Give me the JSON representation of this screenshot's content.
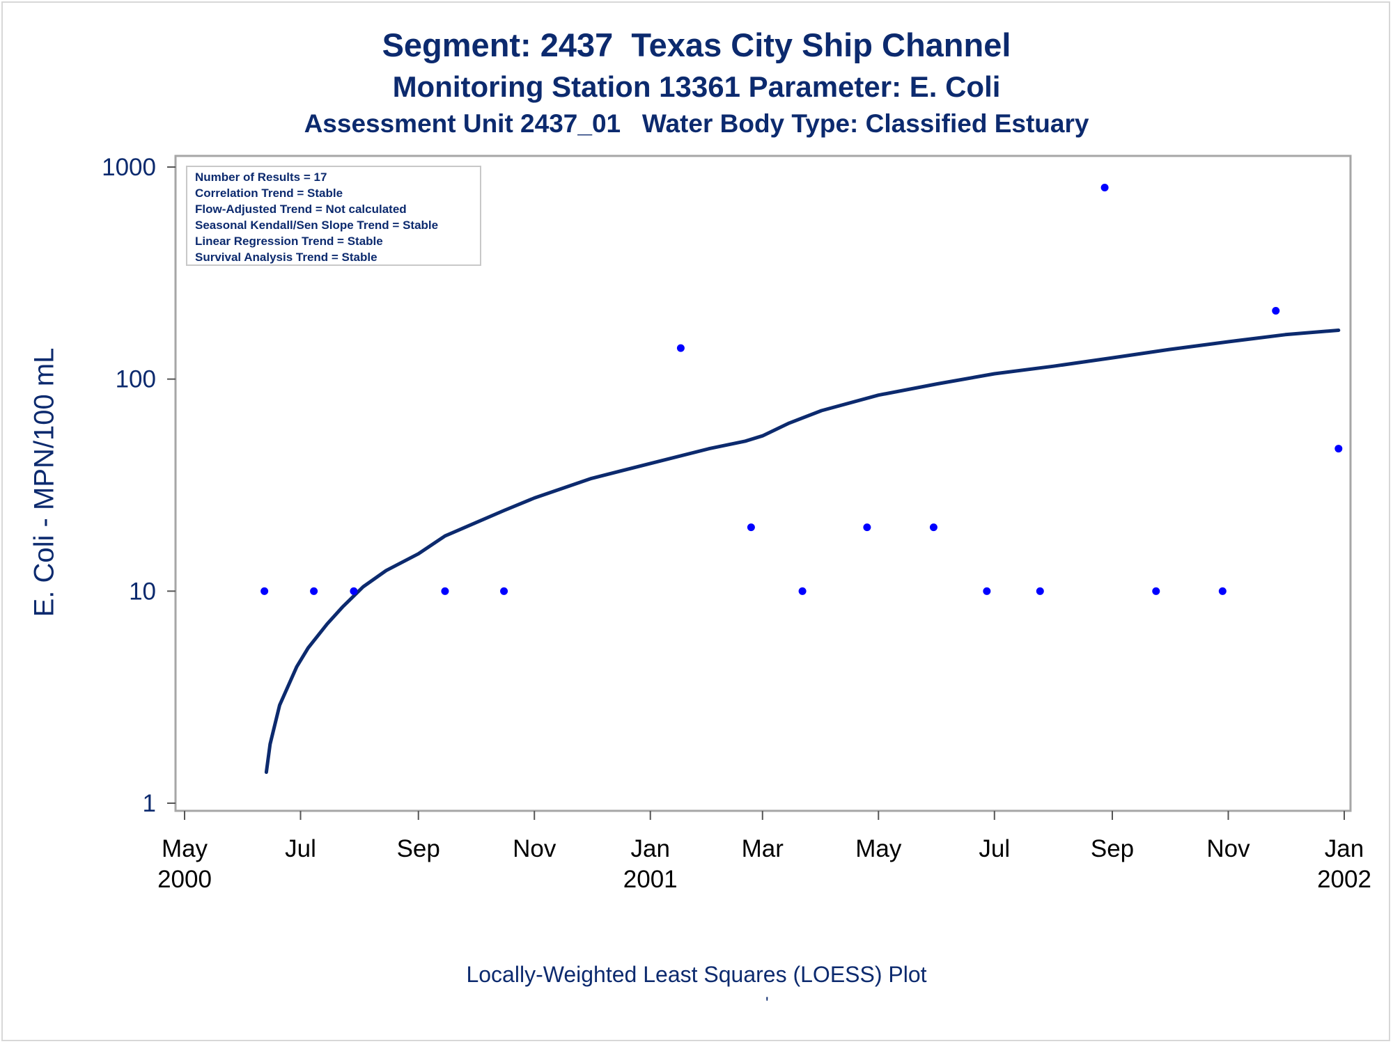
{
  "chart_data": {
    "type": "scatter",
    "title": "Segment: 2437  Texas City Ship Channel",
    "subtitle": "Monitoring Station 13361 Parameter: E. Coli",
    "subtitle2": "Assessment Unit 2437_01   Water Body Type: Classified Estuary",
    "xlabel": "",
    "ylabel": "E. Coli - MPN/100 mL",
    "footnote": "Locally-Weighted Least Squares (LOESS) Plot",
    "footnote_mark": "'",
    "yscale": "log",
    "ylim": [
      1,
      1000
    ],
    "xlim": [
      "2000-05-01",
      "2002-01-01"
    ],
    "grid": false,
    "legend_position": "top-left",
    "stats_box": [
      "Number of Results = 17",
      "Correlation Trend = Stable",
      "Flow-Adjusted Trend = Not calculated",
      "Seasonal Kendall/Sen Slope Trend = Stable",
      "Linear Regression Trend = Stable",
      "Survival Analysis Trend = Stable"
    ],
    "y_ticks": [
      {
        "value": 1,
        "label": "1"
      },
      {
        "value": 10,
        "label": "10"
      },
      {
        "value": 100,
        "label": "100"
      },
      {
        "value": 1000,
        "label": "1000"
      }
    ],
    "x_ticks": [
      {
        "date": "2000-05-01",
        "label": "May",
        "year": "2000"
      },
      {
        "date": "2000-07-01",
        "label": "Jul",
        "year": ""
      },
      {
        "date": "2000-09-01",
        "label": "Sep",
        "year": ""
      },
      {
        "date": "2000-11-01",
        "label": "Nov",
        "year": ""
      },
      {
        "date": "2001-01-01",
        "label": "Jan",
        "year": "2001"
      },
      {
        "date": "2001-03-01",
        "label": "Mar",
        "year": ""
      },
      {
        "date": "2001-05-01",
        "label": "May",
        "year": ""
      },
      {
        "date": "2001-07-01",
        "label": "Jul",
        "year": ""
      },
      {
        "date": "2001-09-01",
        "label": "Sep",
        "year": ""
      },
      {
        "date": "2001-11-01",
        "label": "Nov",
        "year": ""
      },
      {
        "date": "2002-01-01",
        "label": "Jan",
        "year": "2002"
      }
    ],
    "series": [
      {
        "type": "scatter",
        "color": "#0000ff",
        "points": [
          {
            "x": "2000-06-12",
            "y": 10
          },
          {
            "x": "2000-07-08",
            "y": 10
          },
          {
            "x": "2000-07-29",
            "y": 10
          },
          {
            "x": "2000-09-15",
            "y": 10
          },
          {
            "x": "2000-10-16",
            "y": 10
          },
          {
            "x": "2001-01-17",
            "y": 140
          },
          {
            "x": "2001-02-23",
            "y": 20
          },
          {
            "x": "2001-03-22",
            "y": 10
          },
          {
            "x": "2001-04-25",
            "y": 20
          },
          {
            "x": "2001-05-30",
            "y": 20
          },
          {
            "x": "2001-06-27",
            "y": 10
          },
          {
            "x": "2001-07-25",
            "y": 10
          },
          {
            "x": "2001-08-28",
            "y": 800
          },
          {
            "x": "2001-09-24",
            "y": 10
          },
          {
            "x": "2001-10-29",
            "y": 10
          },
          {
            "x": "2001-11-26",
            "y": 210
          },
          {
            "x": "2001-12-29",
            "y": 47
          }
        ]
      },
      {
        "type": "line",
        "color": "#0c2a6e",
        "points": [
          {
            "x": "2000-06-13",
            "y": 1.4
          },
          {
            "x": "2000-06-15",
            "y": 1.9
          },
          {
            "x": "2000-06-20",
            "y": 2.9
          },
          {
            "x": "2000-06-29",
            "y": 4.4
          },
          {
            "x": "2000-07-05",
            "y": 5.4
          },
          {
            "x": "2000-07-15",
            "y": 7.0
          },
          {
            "x": "2000-07-23",
            "y": 8.4
          },
          {
            "x": "2000-08-03",
            "y": 10.5
          },
          {
            "x": "2000-08-15",
            "y": 12.5
          },
          {
            "x": "2000-09-01",
            "y": 15.0
          },
          {
            "x": "2000-09-15",
            "y": 18.2
          },
          {
            "x": "2000-10-01",
            "y": 21.0
          },
          {
            "x": "2000-10-16",
            "y": 24.0
          },
          {
            "x": "2000-11-01",
            "y": 27.5
          },
          {
            "x": "2000-12-01",
            "y": 34.0
          },
          {
            "x": "2001-01-01",
            "y": 40.0
          },
          {
            "x": "2001-02-01",
            "y": 47.0
          },
          {
            "x": "2001-02-20",
            "y": 51.0
          },
          {
            "x": "2001-03-01",
            "y": 54.0
          },
          {
            "x": "2001-03-15",
            "y": 62.0
          },
          {
            "x": "2001-04-01",
            "y": 71.0
          },
          {
            "x": "2001-05-01",
            "y": 84.0
          },
          {
            "x": "2001-06-01",
            "y": 95.0
          },
          {
            "x": "2001-07-01",
            "y": 106.0
          },
          {
            "x": "2001-08-01",
            "y": 115.0
          },
          {
            "x": "2001-09-01",
            "y": 126.0
          },
          {
            "x": "2001-10-01",
            "y": 138.0
          },
          {
            "x": "2001-11-01",
            "y": 150.0
          },
          {
            "x": "2001-12-01",
            "y": 162.0
          },
          {
            "x": "2001-12-29",
            "y": 170.0
          }
        ]
      }
    ]
  }
}
